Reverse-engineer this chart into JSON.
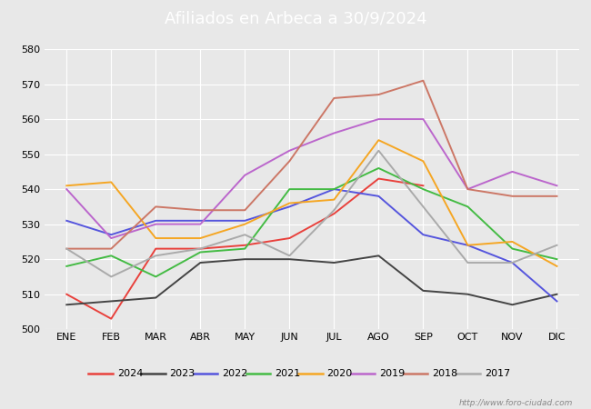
{
  "title": "Afiliados en Arbeca a 30/9/2024",
  "months": [
    "ENE",
    "FEB",
    "MAR",
    "ABR",
    "MAY",
    "JUN",
    "JUL",
    "AGO",
    "SEP",
    "OCT",
    "NOV",
    "DIC"
  ],
  "ylim": [
    500,
    580
  ],
  "yticks": [
    500,
    510,
    520,
    530,
    540,
    550,
    560,
    570,
    580
  ],
  "series": {
    "2024": {
      "color": "#e8413c",
      "data": [
        510,
        503,
        523,
        523,
        524,
        526,
        533,
        543,
        541,
        null,
        null,
        null
      ]
    },
    "2023": {
      "color": "#444444",
      "data": [
        507,
        508,
        509,
        519,
        520,
        520,
        519,
        521,
        511,
        510,
        507,
        510
      ]
    },
    "2022": {
      "color": "#5555dd",
      "data": [
        531,
        527,
        531,
        531,
        531,
        535,
        540,
        538,
        527,
        524,
        519,
        508
      ]
    },
    "2021": {
      "color": "#44bb44",
      "data": [
        518,
        521,
        515,
        522,
        523,
        540,
        540,
        546,
        540,
        535,
        523,
        520
      ]
    },
    "2020": {
      "color": "#f5a623",
      "data": [
        541,
        542,
        526,
        526,
        530,
        536,
        537,
        554,
        548,
        524,
        525,
        518
      ]
    },
    "2019": {
      "color": "#bb66cc",
      "data": [
        540,
        526,
        530,
        530,
        544,
        551,
        556,
        560,
        560,
        540,
        545,
        541
      ]
    },
    "2018": {
      "color": "#cc7766",
      "data": [
        523,
        523,
        535,
        534,
        534,
        548,
        566,
        567,
        571,
        540,
        538,
        538
      ]
    },
    "2017": {
      "color": "#aaaaaa",
      "data": [
        523,
        515,
        521,
        523,
        527,
        521,
        534,
        551,
        535,
        519,
        519,
        524
      ]
    }
  },
  "legend_order": [
    "2024",
    "2023",
    "2022",
    "2021",
    "2020",
    "2019",
    "2018",
    "2017"
  ],
  "title_bg_color": "#4a7fc1",
  "title_color": "white",
  "plot_bg_color": "#e8e8e8",
  "grid_color": "white",
  "watermark": "http://www.foro-ciudad.com",
  "title_fontsize": 13,
  "tick_fontsize": 8,
  "legend_fontsize": 8
}
